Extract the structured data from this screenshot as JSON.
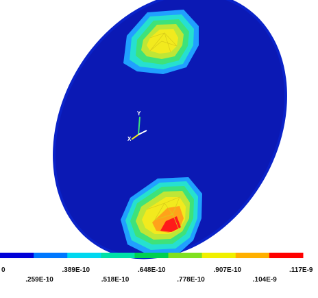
{
  "figure": {
    "type": "contour-plot",
    "axis_labels": {
      "x": "X",
      "y": "Y"
    },
    "legend": {
      "position": "bottom",
      "labels_top": [
        "0",
        ".389E-10",
        ".648E-10",
        ".907E-10",
        ".117E-9"
      ],
      "labels_bottom": [
        ".259E-10",
        ".518E-10",
        ".778E-10",
        ".104E-9"
      ],
      "colors": [
        "#0000d8",
        "#0078ff",
        "#00d8f0",
        "#00e0a8",
        "#00d050",
        "#80e020",
        "#f0f000",
        "#ffb000",
        "#ff0000"
      ]
    },
    "colors": {
      "background": "#ffffff",
      "disk": "#0b19b4",
      "disk_edge": "#0a22c8",
      "level_1": "#20a0ff",
      "level_2": "#26e0d0",
      "level_3": "#3ee27a",
      "level_4": "#bfe636",
      "level_5": "#f2ea1e",
      "level_6": "#ffa21a",
      "level_7": "#ff1a1a"
    }
  }
}
